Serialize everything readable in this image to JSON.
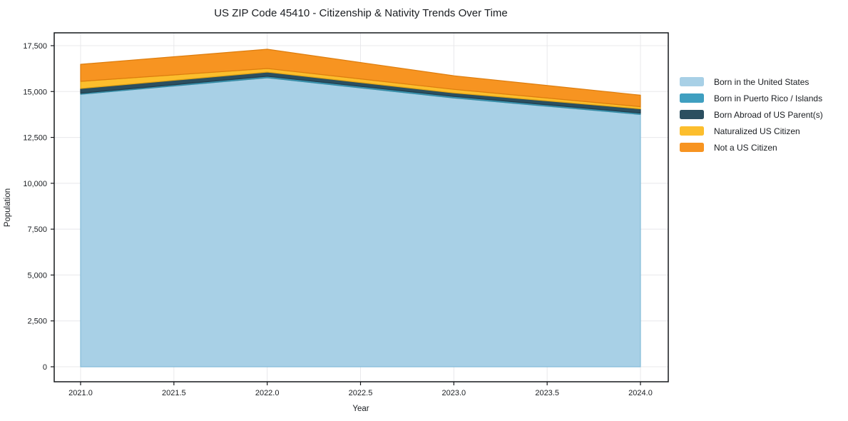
{
  "title": "US ZIP Code 45410 - Citizenship & Nativity Trends Over Time",
  "chart_data": {
    "type": "area",
    "stacked": true,
    "title": "US ZIP Code 45410 - Citizenship & Nativity Trends Over Time",
    "xlabel": "Year",
    "ylabel": "Population",
    "x": [
      2021,
      2022,
      2023,
      2024
    ],
    "series": [
      {
        "name": "Born in the United States",
        "values": [
          14850,
          15750,
          14650,
          13750
        ],
        "color": "#a8d0e6",
        "edge": "#84bcd9"
      },
      {
        "name": "Born in Puerto Rico / Islands",
        "values": [
          60,
          80,
          80,
          75
        ],
        "color": "#3f9fc0",
        "edge": "#34879f"
      },
      {
        "name": "Born Abroad of US Parent(s)",
        "values": [
          255,
          230,
          195,
          235
        ],
        "color": "#2b4f60",
        "edge": "#203c4a"
      },
      {
        "name": "Naturalized US Citizen",
        "values": [
          390,
          195,
          195,
          115
        ],
        "color": "#fcbe2d",
        "edge": "#e2a414"
      },
      {
        "name": "Not a US Citizen",
        "values": [
          930,
          1050,
          740,
          625
        ],
        "color": "#f79421",
        "edge": "#dd7d0e"
      }
    ],
    "totals": [
      16485,
      17305,
      15860,
      14800
    ],
    "x_tick_labels": [
      "2021.0",
      "2021.5",
      "2022.0",
      "2022.5",
      "2023.0",
      "2023.5",
      "2024.0"
    ],
    "x_tick_values": [
      2021,
      2021.5,
      2022,
      2022.5,
      2023,
      2023.5,
      2024
    ],
    "y_tick_labels": [
      "0",
      "2,500",
      "5,000",
      "7,500",
      "10,000",
      "12,500",
      "15,000",
      "17,500"
    ],
    "y_tick_values": [
      0,
      2500,
      5000,
      7500,
      10000,
      12500,
      15000,
      17500
    ],
    "ylim": [
      0,
      17500
    ],
    "grid": true,
    "legend_position": "right-outside",
    "colors": {
      "grid": "#e8e8eb",
      "spine": "#15181c",
      "text": "#1a1d21",
      "background": "#ffffff"
    }
  }
}
